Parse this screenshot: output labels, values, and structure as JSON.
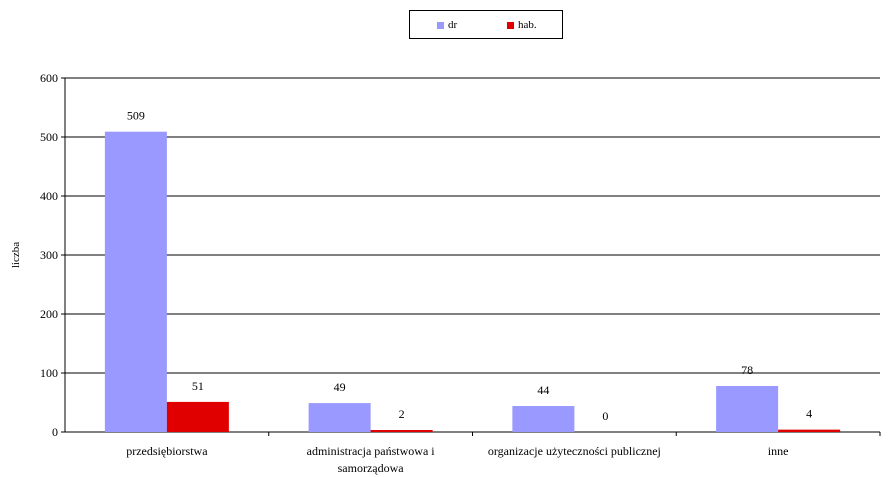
{
  "chart_data": {
    "type": "bar",
    "categories": [
      [
        "przedsiębiorstwa"
      ],
      [
        "administracja państwowa i",
        "samorządowa"
      ],
      [
        "organizacje użyteczności publicznej"
      ],
      [
        "inne"
      ]
    ],
    "series": [
      {
        "name": "dr",
        "color": "#9999FF",
        "values": [
          509,
          49,
          44,
          78
        ]
      },
      {
        "name": "hab.",
        "color": "#E00000",
        "values": [
          51,
          2,
          0,
          4
        ]
      }
    ],
    "ylabel": "liczba",
    "ylim": [
      0,
      600
    ],
    "yticks": [
      0,
      100,
      200,
      300,
      400,
      500,
      600
    ],
    "grid": true,
    "legend_position": "top-center"
  }
}
